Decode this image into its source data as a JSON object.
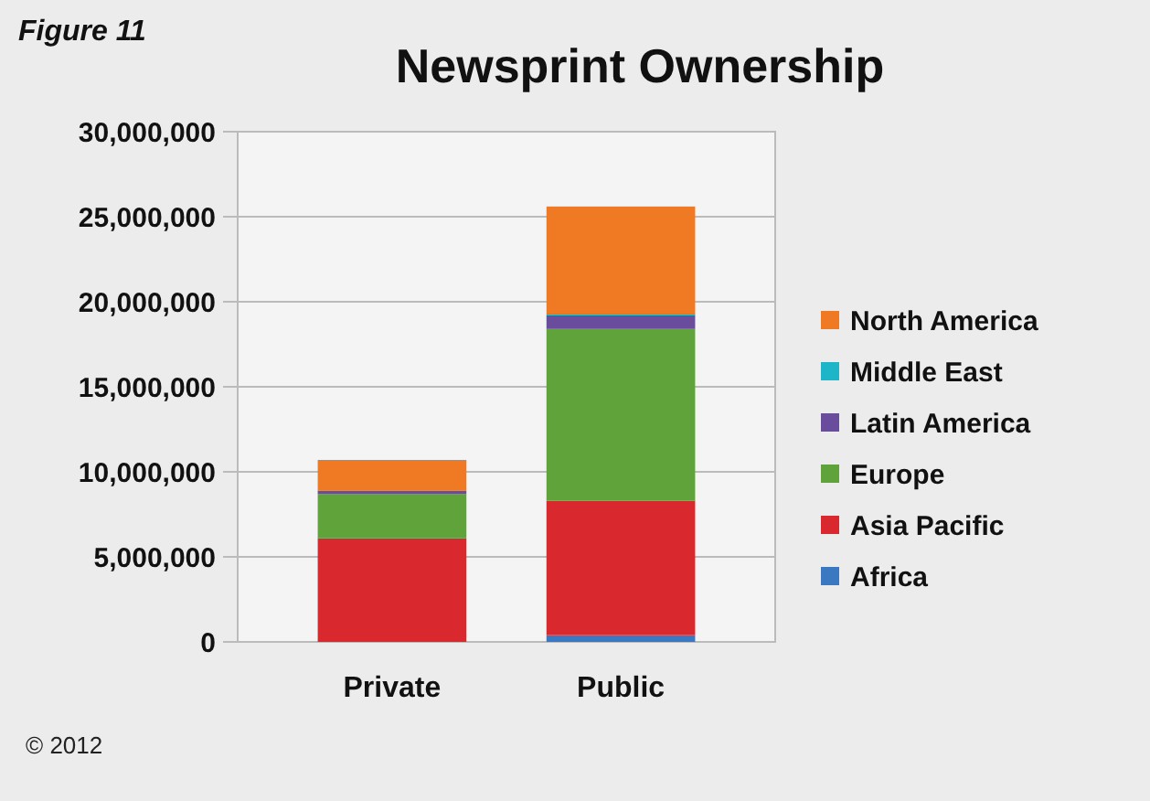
{
  "chart_data": {
    "type": "bar",
    "title": "Newsprint Ownership",
    "categories": [
      "Private",
      "Public"
    ],
    "stacked": true,
    "series": [
      {
        "name": "Africa",
        "color": "#3a78c2",
        "values": [
          0,
          400000.0
        ]
      },
      {
        "name": "Asia Pacific",
        "color": "#d9282e",
        "values": [
          6100000.0,
          7900000.0
        ]
      },
      {
        "name": "Europe",
        "color": "#5fa33a",
        "values": [
          2600000.0,
          10100000.0
        ]
      },
      {
        "name": "Latin America",
        "color": "#6a4c9c",
        "values": [
          200000.0,
          800000.0
        ]
      },
      {
        "name": "Middle East",
        "color": "#1fb5c9",
        "values": [
          0,
          100000.0
        ]
      },
      {
        "name": "North America",
        "color": "#f07a23",
        "values": [
          1800000.0,
          6300000.0
        ]
      }
    ],
    "ylim": [
      0,
      30000000
    ],
    "yticks": [
      0,
      {
        "value": 5000000,
        "label": "5,000,000"
      },
      {
        "value": 10000000,
        "label": "10,000,000"
      },
      {
        "value": 15000000,
        "label": "15,000,000"
      },
      {
        "value": 20000000,
        "label": "20,000,000"
      },
      {
        "value": 25000000,
        "label": "25,000,000"
      },
      {
        "value": 30000000,
        "label": "30,000,000"
      }
    ],
    "grid": "y",
    "legend": "right",
    "annotations": [
      "Figure 11",
      "© 2012"
    ]
  }
}
